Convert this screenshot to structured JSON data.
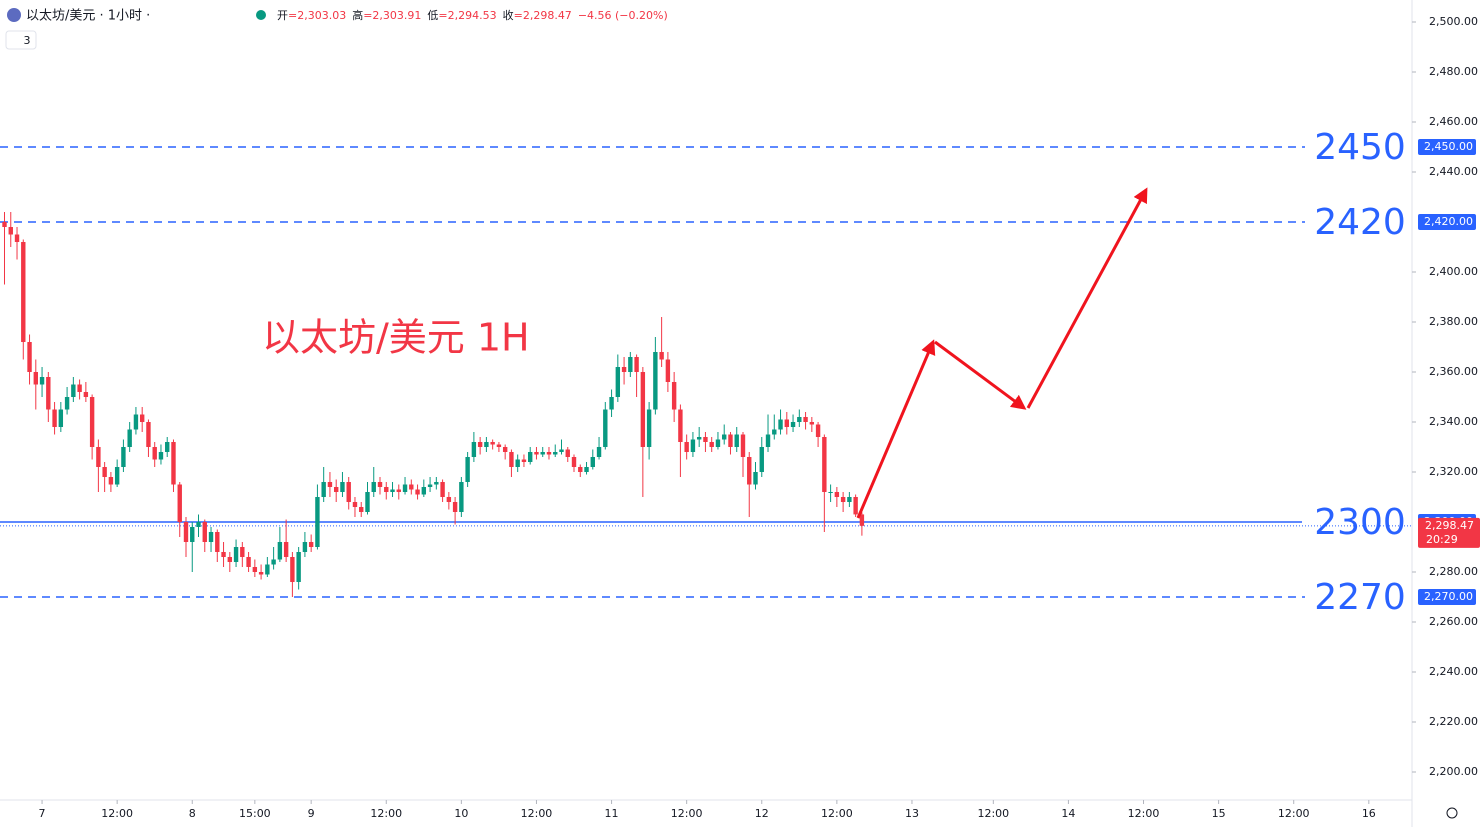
{
  "chart_data": {
    "type": "candlestick",
    "symbol": "以太坊/美元 · 1小时 ·",
    "badge": "3",
    "ohlc_legend": [
      {
        "k": "开",
        "v": "=2,303.03"
      },
      {
        "k": "高",
        "v": "=2,303.91"
      },
      {
        "k": "低",
        "v": "=2,294.53"
      },
      {
        "k": "收",
        "v": "=2,298.47"
      },
      {
        "k": "",
        "v": "−4.56 (−0.20%)"
      }
    ],
    "annotation": "以太坊/美元 1H",
    "up_color": "#089981",
    "down_color": "#f23645",
    "level_color": "#2962ff",
    "ylim": [
      2191.2,
      2508.8
    ],
    "yticks": [
      {
        "value": 2200,
        "label": "2,200.00"
      },
      {
        "value": 2220,
        "label": "2,220.00"
      },
      {
        "value": 2240,
        "label": "2,240.00"
      },
      {
        "value": 2260,
        "label": "2,260.00"
      },
      {
        "value": 2280,
        "label": "2,280.00"
      },
      {
        "value": 2320,
        "label": "2,320.00"
      },
      {
        "value": 2340,
        "label": "2,340.00"
      },
      {
        "value": 2360,
        "label": "2,360.00"
      },
      {
        "value": 2380,
        "label": "2,380.00"
      },
      {
        "value": 2400,
        "label": "2,400.00"
      },
      {
        "value": 2440,
        "label": "2,440.00"
      },
      {
        "value": 2460,
        "label": "2,460.00"
      },
      {
        "value": 2480,
        "label": "2,480.00"
      },
      {
        "value": 2500,
        "label": "2,500.00"
      }
    ],
    "xlim": [
      -0.72,
      224.9
    ],
    "xticks": [
      {
        "value": 6,
        "label": "7"
      },
      {
        "value": 18,
        "label": "12:00"
      },
      {
        "value": 30,
        "label": "8"
      },
      {
        "value": 40,
        "label": "15:00"
      },
      {
        "value": 49,
        "label": "9"
      },
      {
        "value": 61,
        "label": "12:00"
      },
      {
        "value": 73,
        "label": "10"
      },
      {
        "value": 85,
        "label": "12:00"
      },
      {
        "value": 97,
        "label": "11"
      },
      {
        "value": 109,
        "label": "12:00"
      },
      {
        "value": 121,
        "label": "12"
      },
      {
        "value": 133,
        "label": "12:00"
      },
      {
        "value": 145,
        "label": "13"
      },
      {
        "value": 158,
        "label": "12:00"
      },
      {
        "value": 170,
        "label": "14"
      },
      {
        "value": 182,
        "label": "12:00"
      },
      {
        "value": 194,
        "label": "15"
      },
      {
        "value": 206,
        "label": "12:00"
      },
      {
        "value": 218,
        "label": "16"
      }
    ],
    "levels": [
      {
        "value": 2450,
        "label": "2450",
        "axis_label": "2,450.00",
        "style": "dashed"
      },
      {
        "value": 2420,
        "label": "2420",
        "axis_label": "2,420.00",
        "style": "dashed"
      },
      {
        "value": 2300,
        "label": "2300",
        "axis_label": "2,300.00",
        "style": "solid"
      },
      {
        "value": 2270,
        "label": "2270",
        "axis_label": "2,270.00",
        "style": "dashed"
      }
    ],
    "last_price": {
      "value": 2298.47,
      "label": "2,298.47",
      "countdown": "20:29"
    },
    "ohlc": [
      [
        2420,
        2424,
        2395,
        2418
      ],
      [
        2418,
        2424,
        2410,
        2415
      ],
      [
        2415,
        2418,
        2405,
        2412
      ],
      [
        2412,
        2413,
        2365,
        2372
      ],
      [
        2372,
        2375,
        2355,
        2360
      ],
      [
        2360,
        2365,
        2345,
        2355
      ],
      [
        2355,
        2362,
        2350,
        2358
      ],
      [
        2358,
        2360,
        2340,
        2345
      ],
      [
        2345,
        2348,
        2335,
        2338
      ],
      [
        2338,
        2348,
        2336,
        2345
      ],
      [
        2345,
        2354,
        2343,
        2350
      ],
      [
        2350,
        2358,
        2348,
        2355
      ],
      [
        2355,
        2357,
        2349,
        2352
      ],
      [
        2352,
        2356,
        2348,
        2350
      ],
      [
        2350,
        2351,
        2325,
        2330
      ],
      [
        2330,
        2333,
        2312,
        2322
      ],
      [
        2322,
        2324,
        2312,
        2318
      ],
      [
        2318,
        2320,
        2312,
        2315
      ],
      [
        2315,
        2325,
        2314,
        2322
      ],
      [
        2322,
        2333,
        2320,
        2330
      ],
      [
        2330,
        2340,
        2328,
        2337
      ],
      [
        2337,
        2346,
        2335,
        2343
      ],
      [
        2343,
        2346,
        2336,
        2340
      ],
      [
        2340,
        2341,
        2326,
        2330
      ],
      [
        2330,
        2332,
        2322,
        2325
      ],
      [
        2325,
        2331,
        2323,
        2328
      ],
      [
        2328,
        2334,
        2326,
        2332
      ],
      [
        2332,
        2333,
        2312,
        2315
      ],
      [
        2315,
        2316,
        2294,
        2300
      ],
      [
        2300,
        2302,
        2286,
        2292
      ],
      [
        2292,
        2300,
        2280,
        2298
      ],
      [
        2298,
        2303,
        2294,
        2300
      ],
      [
        2300,
        2301,
        2288,
        2292
      ],
      [
        2292,
        2298,
        2288,
        2296
      ],
      [
        2296,
        2297,
        2284,
        2288
      ],
      [
        2288,
        2292,
        2282,
        2286
      ],
      [
        2286,
        2288,
        2280,
        2284
      ],
      [
        2284,
        2293,
        2282,
        2290
      ],
      [
        2290,
        2292,
        2282,
        2286
      ],
      [
        2286,
        2288,
        2280,
        2282
      ],
      [
        2282,
        2285,
        2278,
        2280
      ],
      [
        2280,
        2283,
        2277,
        2279
      ],
      [
        2279,
        2286,
        2278,
        2283
      ],
      [
        2283,
        2290,
        2281,
        2285
      ],
      [
        2285,
        2298,
        2284,
        2292
      ],
      [
        2292,
        2301,
        2284,
        2286
      ],
      [
        2286,
        2288,
        2270,
        2276
      ],
      [
        2276,
        2290,
        2273,
        2288
      ],
      [
        2288,
        2296,
        2286,
        2292
      ],
      [
        2292,
        2295,
        2288,
        2290
      ],
      [
        2290,
        2315,
        2289,
        2310
      ],
      [
        2310,
        2322,
        2308,
        2316
      ],
      [
        2316,
        2320,
        2310,
        2314
      ],
      [
        2314,
        2317,
        2308,
        2312
      ],
      [
        2312,
        2320,
        2310,
        2316
      ],
      [
        2316,
        2318,
        2305,
        2308
      ],
      [
        2308,
        2310,
        2302,
        2306
      ],
      [
        2306,
        2308,
        2302,
        2304
      ],
      [
        2304,
        2316,
        2303,
        2312
      ],
      [
        2312,
        2322,
        2310,
        2316
      ],
      [
        2316,
        2318,
        2311,
        2314
      ],
      [
        2314,
        2316,
        2309,
        2312
      ],
      [
        2312,
        2316,
        2310,
        2313
      ],
      [
        2313,
        2315,
        2309,
        2312
      ],
      [
        2312,
        2318,
        2311,
        2315
      ],
      [
        2315,
        2317,
        2311,
        2313
      ],
      [
        2313,
        2315,
        2309,
        2311
      ],
      [
        2311,
        2317,
        2310,
        2314
      ],
      [
        2314,
        2318,
        2312,
        2315
      ],
      [
        2315,
        2318,
        2313,
        2316
      ],
      [
        2316,
        2317,
        2308,
        2310
      ],
      [
        2310,
        2312,
        2305,
        2308
      ],
      [
        2308,
        2310,
        2299,
        2304
      ],
      [
        2304,
        2318,
        2302,
        2316
      ],
      [
        2316,
        2328,
        2314,
        2326
      ],
      [
        2326,
        2336,
        2324,
        2332
      ],
      [
        2332,
        2334,
        2327,
        2330
      ],
      [
        2330,
        2334,
        2328,
        2332
      ],
      [
        2332,
        2333,
        2329,
        2331
      ],
      [
        2331,
        2332,
        2328,
        2330
      ],
      [
        2330,
        2331,
        2325,
        2328
      ],
      [
        2328,
        2329,
        2318,
        2322
      ],
      [
        2322,
        2327,
        2320,
        2325
      ],
      [
        2325,
        2327,
        2322,
        2324
      ],
      [
        2324,
        2330,
        2323,
        2328
      ],
      [
        2328,
        2330,
        2325,
        2327
      ],
      [
        2327,
        2330,
        2326,
        2328
      ],
      [
        2328,
        2330,
        2325,
        2327
      ],
      [
        2327,
        2331,
        2326,
        2328
      ],
      [
        2328,
        2333,
        2327,
        2329
      ],
      [
        2329,
        2330,
        2324,
        2326
      ],
      [
        2326,
        2327,
        2320,
        2322
      ],
      [
        2322,
        2323,
        2318,
        2320
      ],
      [
        2320,
        2324,
        2319,
        2322
      ],
      [
        2322,
        2329,
        2321,
        2326
      ],
      [
        2326,
        2334,
        2325,
        2330
      ],
      [
        2330,
        2348,
        2329,
        2345
      ],
      [
        2345,
        2353,
        2342,
        2350
      ],
      [
        2350,
        2367,
        2348,
        2362
      ],
      [
        2362,
        2366,
        2355,
        2360
      ],
      [
        2360,
        2368,
        2358,
        2366
      ],
      [
        2366,
        2367,
        2350,
        2360
      ],
      [
        2360,
        2362,
        2310,
        2330
      ],
      [
        2330,
        2348,
        2325,
        2345
      ],
      [
        2345,
        2374,
        2343,
        2368
      ],
      [
        2368,
        2382,
        2362,
        2365
      ],
      [
        2365,
        2368,
        2352,
        2356
      ],
      [
        2356,
        2360,
        2340,
        2345
      ],
      [
        2345,
        2347,
        2318,
        2332
      ],
      [
        2332,
        2335,
        2325,
        2328
      ],
      [
        2328,
        2336,
        2326,
        2333
      ],
      [
        2333,
        2338,
        2330,
        2334
      ],
      [
        2334,
        2336,
        2328,
        2332
      ],
      [
        2332,
        2334,
        2328,
        2330
      ],
      [
        2330,
        2336,
        2329,
        2333
      ],
      [
        2333,
        2339,
        2331,
        2335
      ],
      [
        2335,
        2336,
        2327,
        2330
      ],
      [
        2330,
        2338,
        2328,
        2335
      ],
      [
        2335,
        2336,
        2318,
        2326
      ],
      [
        2326,
        2328,
        2302,
        2315
      ],
      [
        2315,
        2324,
        2313,
        2320
      ],
      [
        2320,
        2334,
        2318,
        2330
      ],
      [
        2330,
        2343,
        2328,
        2335
      ],
      [
        2335,
        2343,
        2333,
        2337
      ],
      [
        2337,
        2345,
        2335,
        2341
      ],
      [
        2341,
        2344,
        2335,
        2338
      ],
      [
        2338,
        2343,
        2336,
        2340
      ],
      [
        2340,
        2345,
        2338,
        2342
      ],
      [
        2342,
        2344,
        2337,
        2340
      ],
      [
        2340,
        2342,
        2336,
        2339
      ],
      [
        2339,
        2340,
        2330,
        2334
      ],
      [
        2334,
        2335,
        2296,
        2312
      ],
      [
        2312,
        2315,
        2308,
        2312
      ],
      [
        2312,
        2314,
        2306,
        2310
      ],
      [
        2310,
        2312,
        2304,
        2308
      ],
      [
        2308,
        2312,
        2306,
        2310
      ],
      [
        2310,
        2311,
        2302,
        2303.03
      ],
      [
        2303.03,
        2303.91,
        2294.53,
        2298.47
      ]
    ]
  }
}
